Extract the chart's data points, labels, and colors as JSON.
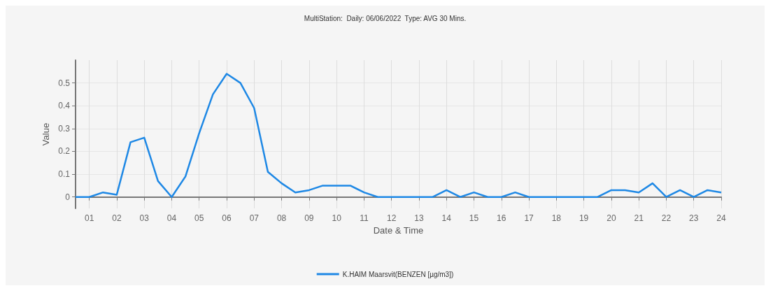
{
  "chart_data": {
    "type": "line",
    "title": "MultiStation:  Daily: 06/06/2022  Type: AVG 30 Mins.",
    "xlabel": "Date & Time",
    "ylabel": "Value",
    "x": [
      0.5,
      1,
      1.5,
      2,
      2.5,
      3,
      3.5,
      4,
      4.5,
      5,
      5.5,
      6,
      6.5,
      7,
      7.5,
      8,
      8.5,
      9,
      9.5,
      10,
      10.5,
      11,
      11.5,
      12,
      12.5,
      13,
      13.5,
      14,
      14.5,
      15,
      15.5,
      16,
      16.5,
      17,
      17.5,
      18,
      18.5,
      19,
      19.5,
      20,
      20.5,
      21,
      21.5,
      22,
      22.5,
      23,
      23.5,
      24
    ],
    "series": [
      {
        "name": "K.HAIM Maarsvit(BENZEN [µg/m3])",
        "color": "#1e88e5",
        "values": [
          0,
          0,
          0.02,
          0.01,
          0.24,
          0.26,
          0.07,
          0,
          0.09,
          0.28,
          0.45,
          0.54,
          0.5,
          0.39,
          0.11,
          0.06,
          0.02,
          0.03,
          0.05,
          0.05,
          0.05,
          0.02,
          0,
          0,
          0,
          0,
          0,
          0.03,
          0,
          0.02,
          0,
          0,
          0.02,
          0,
          0,
          0,
          0,
          0,
          0,
          0.03,
          0.03,
          0.02,
          0.06,
          0,
          0.03,
          0,
          0.03,
          0.02
        ]
      }
    ],
    "xlim": [
      0.5,
      24
    ],
    "xticks": [
      {
        "value": 1,
        "label": "01"
      },
      {
        "value": 2,
        "label": "02"
      },
      {
        "value": 3,
        "label": "03"
      },
      {
        "value": 4,
        "label": "04"
      },
      {
        "value": 5,
        "label": "05"
      },
      {
        "value": 6,
        "label": "06"
      },
      {
        "value": 7,
        "label": "07"
      },
      {
        "value": 8,
        "label": "08"
      },
      {
        "value": 9,
        "label": "09"
      },
      10,
      11,
      12,
      13,
      14,
      15,
      16,
      17,
      18,
      19,
      20,
      21,
      22,
      23,
      24
    ],
    "ylim": [
      -0.05,
      0.6
    ],
    "yticks": [
      0,
      0.1,
      0.2,
      0.3,
      0.4,
      0.5
    ],
    "grid": true,
    "legend": "bottom",
    "marker": "none",
    "line_style": "solid"
  }
}
